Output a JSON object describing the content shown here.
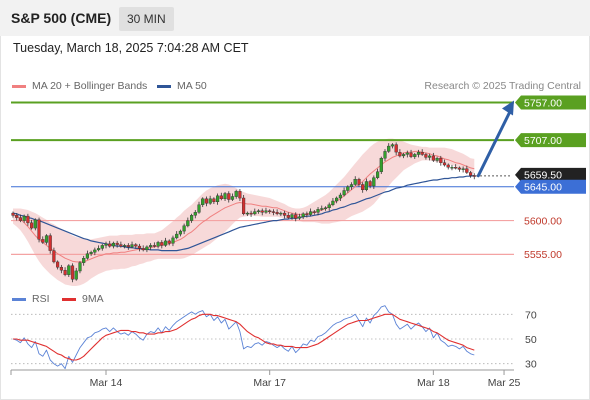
{
  "header": {
    "instrument": "S&P 500 (CME)",
    "timeframe": "30 MIN",
    "datetime": "Tuesday, March 18, 2025 7:04:28 AM CET",
    "research": "Research © 2025 Trading Central"
  },
  "legend": {
    "ma20_label": "MA 20 + Bollinger Bands",
    "ma50_label": "MA 50",
    "rsi_label": "RSI",
    "rsi_ma_label": "9MA"
  },
  "colors": {
    "up": "#33a02c",
    "down": "#d32f2f",
    "ma20": "#f08080",
    "ma50": "#2f5597",
    "band": "#f4cccc",
    "resistance": "#5aa021",
    "support": "#f4a3a3",
    "pivot": "#3c6fd6",
    "arrow": "#2f5fa6",
    "rsi": "#5b83d6",
    "rsi_ma": "#e03030"
  },
  "chart_data": [
    {
      "type": "candlestick",
      "title": "S&P 500 (CME) 30 MIN",
      "x_labels": [
        "Mar 14",
        "Mar 17",
        "Mar 18",
        "Mar 25"
      ],
      "ylim": [
        5505,
        5775
      ],
      "levels": [
        {
          "label": "5757.00",
          "value": 5757,
          "kind": "resistance"
        },
        {
          "label": "5707.00",
          "value": 5707,
          "kind": "resistance"
        },
        {
          "label": "5659.50",
          "value": 5659.5,
          "kind": "last"
        },
        {
          "label": "5645.00",
          "value": 5645,
          "kind": "pivot"
        },
        {
          "label": "5600.00",
          "value": 5600,
          "kind": "support"
        },
        {
          "label": "5555.00",
          "value": 5555,
          "kind": "support"
        }
      ],
      "close": [
        5607,
        5604,
        5600,
        5606,
        5597,
        5590,
        5601,
        5575,
        5571,
        5580,
        5560,
        5545,
        5538,
        5534,
        5528,
        5540,
        5522,
        5533,
        5544,
        5550,
        5556,
        5558,
        5561,
        5563,
        5567,
        5569,
        5566,
        5570,
        5568,
        5566,
        5567,
        5565,
        5568,
        5566,
        5563,
        5561,
        5565,
        5567,
        5566,
        5571,
        5567,
        5573,
        5570,
        5577,
        5582,
        5586,
        5593,
        5600,
        5607,
        5611,
        5621,
        5629,
        5623,
        5629,
        5625,
        5633,
        5629,
        5636,
        5628,
        5632,
        5639,
        5630,
        5609,
        5610,
        5609,
        5612,
        5613,
        5611,
        5613,
        5612,
        5611,
        5609,
        5610,
        5607,
        5604,
        5608,
        5603,
        5605,
        5609,
        5608,
        5612,
        5611,
        5615,
        5616,
        5617,
        5621,
        5626,
        5630,
        5634,
        5640,
        5645,
        5648,
        5655,
        5648,
        5641,
        5652,
        5646,
        5657,
        5665,
        5683,
        5692,
        5699,
        5701,
        5691,
        5686,
        5688,
        5690,
        5685,
        5688,
        5691,
        5688,
        5684,
        5686,
        5680,
        5683,
        5677,
        5674,
        5671,
        5671,
        5670,
        5668,
        5669,
        5664,
        5660,
        5659
      ],
      "ma20": [
        5608,
        5606,
        5602,
        5597,
        5592,
        5586,
        5580,
        5575,
        5571,
        5567,
        5563,
        5560,
        5556,
        5553,
        5550,
        5548,
        5546,
        5545,
        5545,
        5545,
        5547,
        5549,
        5551,
        5553,
        5554,
        5556,
        5556,
        5557,
        5557,
        5558,
        5558,
        5559,
        5560,
        5561,
        5562,
        5562,
        5563,
        5564,
        5565,
        5566,
        5567,
        5568,
        5569,
        5571,
        5573,
        5575,
        5578,
        5582,
        5585,
        5589,
        5594,
        5598,
        5601,
        5605,
        5608,
        5611,
        5614,
        5617,
        5619,
        5621,
        5623,
        5624,
        5623,
        5622,
        5622,
        5621,
        5620,
        5619,
        5619,
        5618,
        5617,
        5617,
        5615,
        5613,
        5611,
        5610,
        5609,
        5608,
        5608,
        5609,
        5610,
        5611,
        5612,
        5614,
        5616,
        5619,
        5623,
        5626,
        5629,
        5633,
        5637,
        5641,
        5645,
        5648,
        5652,
        5657,
        5662,
        5666,
        5670,
        5674,
        5678,
        5681,
        5684,
        5686,
        5688,
        5690,
        5691,
        5691,
        5692,
        5692,
        5691,
        5690,
        5689,
        5687,
        5686,
        5684,
        5682,
        5681,
        5679,
        5677,
        5676,
        5674,
        5672,
        5670,
        5669
      ],
      "bb_upper": [
        5616,
        5616,
        5616,
        5615,
        5614,
        5612,
        5610,
        5607,
        5604,
        5601,
        5597,
        5595,
        5592,
        5589,
        5586,
        5583,
        5580,
        5578,
        5577,
        5576,
        5575,
        5575,
        5576,
        5577,
        5578,
        5579,
        5580,
        5580,
        5580,
        5581,
        5581,
        5581,
        5581,
        5582,
        5582,
        5582,
        5583,
        5583,
        5583,
        5585,
        5587,
        5591,
        5595,
        5599,
        5604,
        5608,
        5613,
        5617,
        5621,
        5626,
        5631,
        5636,
        5640,
        5643,
        5645,
        5647,
        5648,
        5649,
        5648,
        5646,
        5643,
        5640,
        5638,
        5636,
        5635,
        5634,
        5633,
        5632,
        5631,
        5630,
        5628,
        5626,
        5624,
        5622,
        5619,
        5617,
        5616,
        5616,
        5617,
        5619,
        5622,
        5625,
        5628,
        5631,
        5634,
        5638,
        5643,
        5648,
        5653,
        5658,
        5664,
        5670,
        5676,
        5682,
        5688,
        5693,
        5698,
        5702,
        5705,
        5707,
        5708,
        5709,
        5709,
        5708,
        5707,
        5705,
        5703,
        5701,
        5700,
        5699,
        5698,
        5698,
        5697,
        5697,
        5697,
        5697,
        5697,
        5696,
        5695,
        5693,
        5691,
        5689,
        5686,
        5683,
        5682
      ],
      "bb_lower": [
        5596,
        5592,
        5587,
        5580,
        5572,
        5563,
        5554,
        5546,
        5539,
        5534,
        5529,
        5525,
        5521,
        5518,
        5515,
        5514,
        5513,
        5513,
        5514,
        5516,
        5519,
        5523,
        5526,
        5529,
        5531,
        5533,
        5534,
        5535,
        5535,
        5536,
        5536,
        5537,
        5539,
        5540,
        5542,
        5543,
        5545,
        5546,
        5548,
        5549,
        5549,
        5549,
        5549,
        5549,
        5549,
        5549,
        5550,
        5552,
        5554,
        5557,
        5560,
        5563,
        5566,
        5569,
        5573,
        5577,
        5581,
        5585,
        5590,
        5595,
        5600,
        5604,
        5605,
        5606,
        5607,
        5606,
        5606,
        5605,
        5605,
        5605,
        5605,
        5605,
        5604,
        5603,
        5602,
        5601,
        5600,
        5599,
        5598,
        5598,
        5598,
        5598,
        5597,
        5596,
        5596,
        5596,
        5597,
        5598,
        5599,
        5600,
        5603,
        5606,
        5608,
        5610,
        5612,
        5615,
        5618,
        5622,
        5628,
        5634,
        5640,
        5646,
        5652,
        5657,
        5662,
        5667,
        5670,
        5673,
        5676,
        5678,
        5680,
        5680,
        5680,
        5679,
        5678,
        5677,
        5676,
        5675,
        5674,
        5672,
        5670,
        5668,
        5667,
        5665,
        5662
      ],
      "ma50": [
        5610,
        5609,
        5607,
        5606,
        5604,
        5603,
        5601,
        5600,
        5598,
        5596,
        5594,
        5592,
        5590,
        5588,
        5586,
        5584,
        5582,
        5580,
        5578,
        5576,
        5575,
        5573,
        5572,
        5571,
        5570,
        5569,
        5568,
        5567,
        5566,
        5566,
        5565,
        5564,
        5564,
        5563,
        5563,
        5562,
        5562,
        5561,
        5561,
        5561,
        5560,
        5560,
        5560,
        5560,
        5560,
        5561,
        5562,
        5563,
        5565,
        5567,
        5569,
        5571,
        5573,
        5575,
        5577,
        5579,
        5581,
        5583,
        5585,
        5587,
        5589,
        5591,
        5592,
        5593,
        5594,
        5595,
        5596,
        5597,
        5598,
        5599,
        5600,
        5600,
        5601,
        5602,
        5602,
        5603,
        5603,
        5604,
        5605,
        5606,
        5606,
        5607,
        5608,
        5609,
        5611,
        5612,
        5614,
        5615,
        5617,
        5618,
        5620,
        5622,
        5623,
        5625,
        5627,
        5629,
        5630,
        5632,
        5634,
        5636,
        5638,
        5639,
        5641,
        5643,
        5644,
        5645,
        5647,
        5648,
        5649,
        5650,
        5651,
        5652,
        5653,
        5654,
        5654,
        5655,
        5656,
        5656,
        5657,
        5657,
        5658,
        5658,
        5659,
        5659,
        5660
      ],
      "projection": {
        "from": 5659.5,
        "to": 5757
      }
    },
    {
      "type": "line",
      "title": "RSI",
      "ylim": [
        20,
        80
      ],
      "yticks": [
        30,
        50,
        70
      ],
      "series": [
        {
          "name": "RSI",
          "values": [
            50,
            49,
            47,
            51,
            46,
            43,
            48,
            38,
            36,
            41,
            33,
            30,
            28,
            30,
            26,
            36,
            31,
            37,
            43,
            47,
            51,
            52,
            55,
            56,
            58,
            59,
            56,
            59,
            56,
            54,
            55,
            53,
            56,
            54,
            51,
            49,
            54,
            56,
            55,
            59,
            55,
            60,
            57,
            61,
            64,
            66,
            68,
            70,
            72,
            70,
            72,
            73,
            68,
            70,
            65,
            68,
            63,
            66,
            58,
            61,
            64,
            56,
            42,
            44,
            43,
            46,
            47,
            45,
            48,
            47,
            45,
            43,
            45,
            42,
            40,
            44,
            39,
            42,
            46,
            45,
            49,
            48,
            52,
            53,
            55,
            58,
            61,
            63,
            64,
            66,
            67,
            68,
            70,
            65,
            60,
            67,
            63,
            69,
            72,
            76,
            77,
            72,
            70,
            62,
            58,
            60,
            62,
            58,
            61,
            63,
            60,
            56,
            59,
            51,
            55,
            49,
            47,
            44,
            45,
            44,
            42,
            44,
            40,
            38,
            37
          ]
        },
        {
          "name": "9MA",
          "values": [
            50,
            50,
            49,
            49,
            49,
            48,
            47,
            46,
            45,
            44,
            42,
            40,
            38,
            37,
            35,
            34,
            33,
            33,
            34,
            36,
            39,
            42,
            45,
            48,
            51,
            53,
            54,
            55,
            56,
            57,
            57,
            57,
            56,
            56,
            55,
            55,
            54,
            54,
            54,
            55,
            55,
            56,
            56,
            57,
            58,
            60,
            62,
            64,
            66,
            67,
            69,
            70,
            70,
            70,
            69,
            69,
            68,
            67,
            66,
            65,
            64,
            62,
            59,
            56,
            54,
            52,
            51,
            49,
            47,
            46,
            46,
            45,
            45,
            44,
            44,
            44,
            43,
            43,
            43,
            43,
            44,
            45,
            46,
            48,
            50,
            52,
            54,
            56,
            58,
            60,
            62,
            63,
            64,
            65,
            65,
            65,
            66,
            67,
            68,
            69,
            70,
            70,
            70,
            68,
            66,
            65,
            64,
            63,
            62,
            61,
            60,
            59,
            58,
            56,
            55,
            53,
            51,
            49,
            48,
            47,
            46,
            45,
            43,
            42,
            41
          ]
        }
      ]
    }
  ]
}
